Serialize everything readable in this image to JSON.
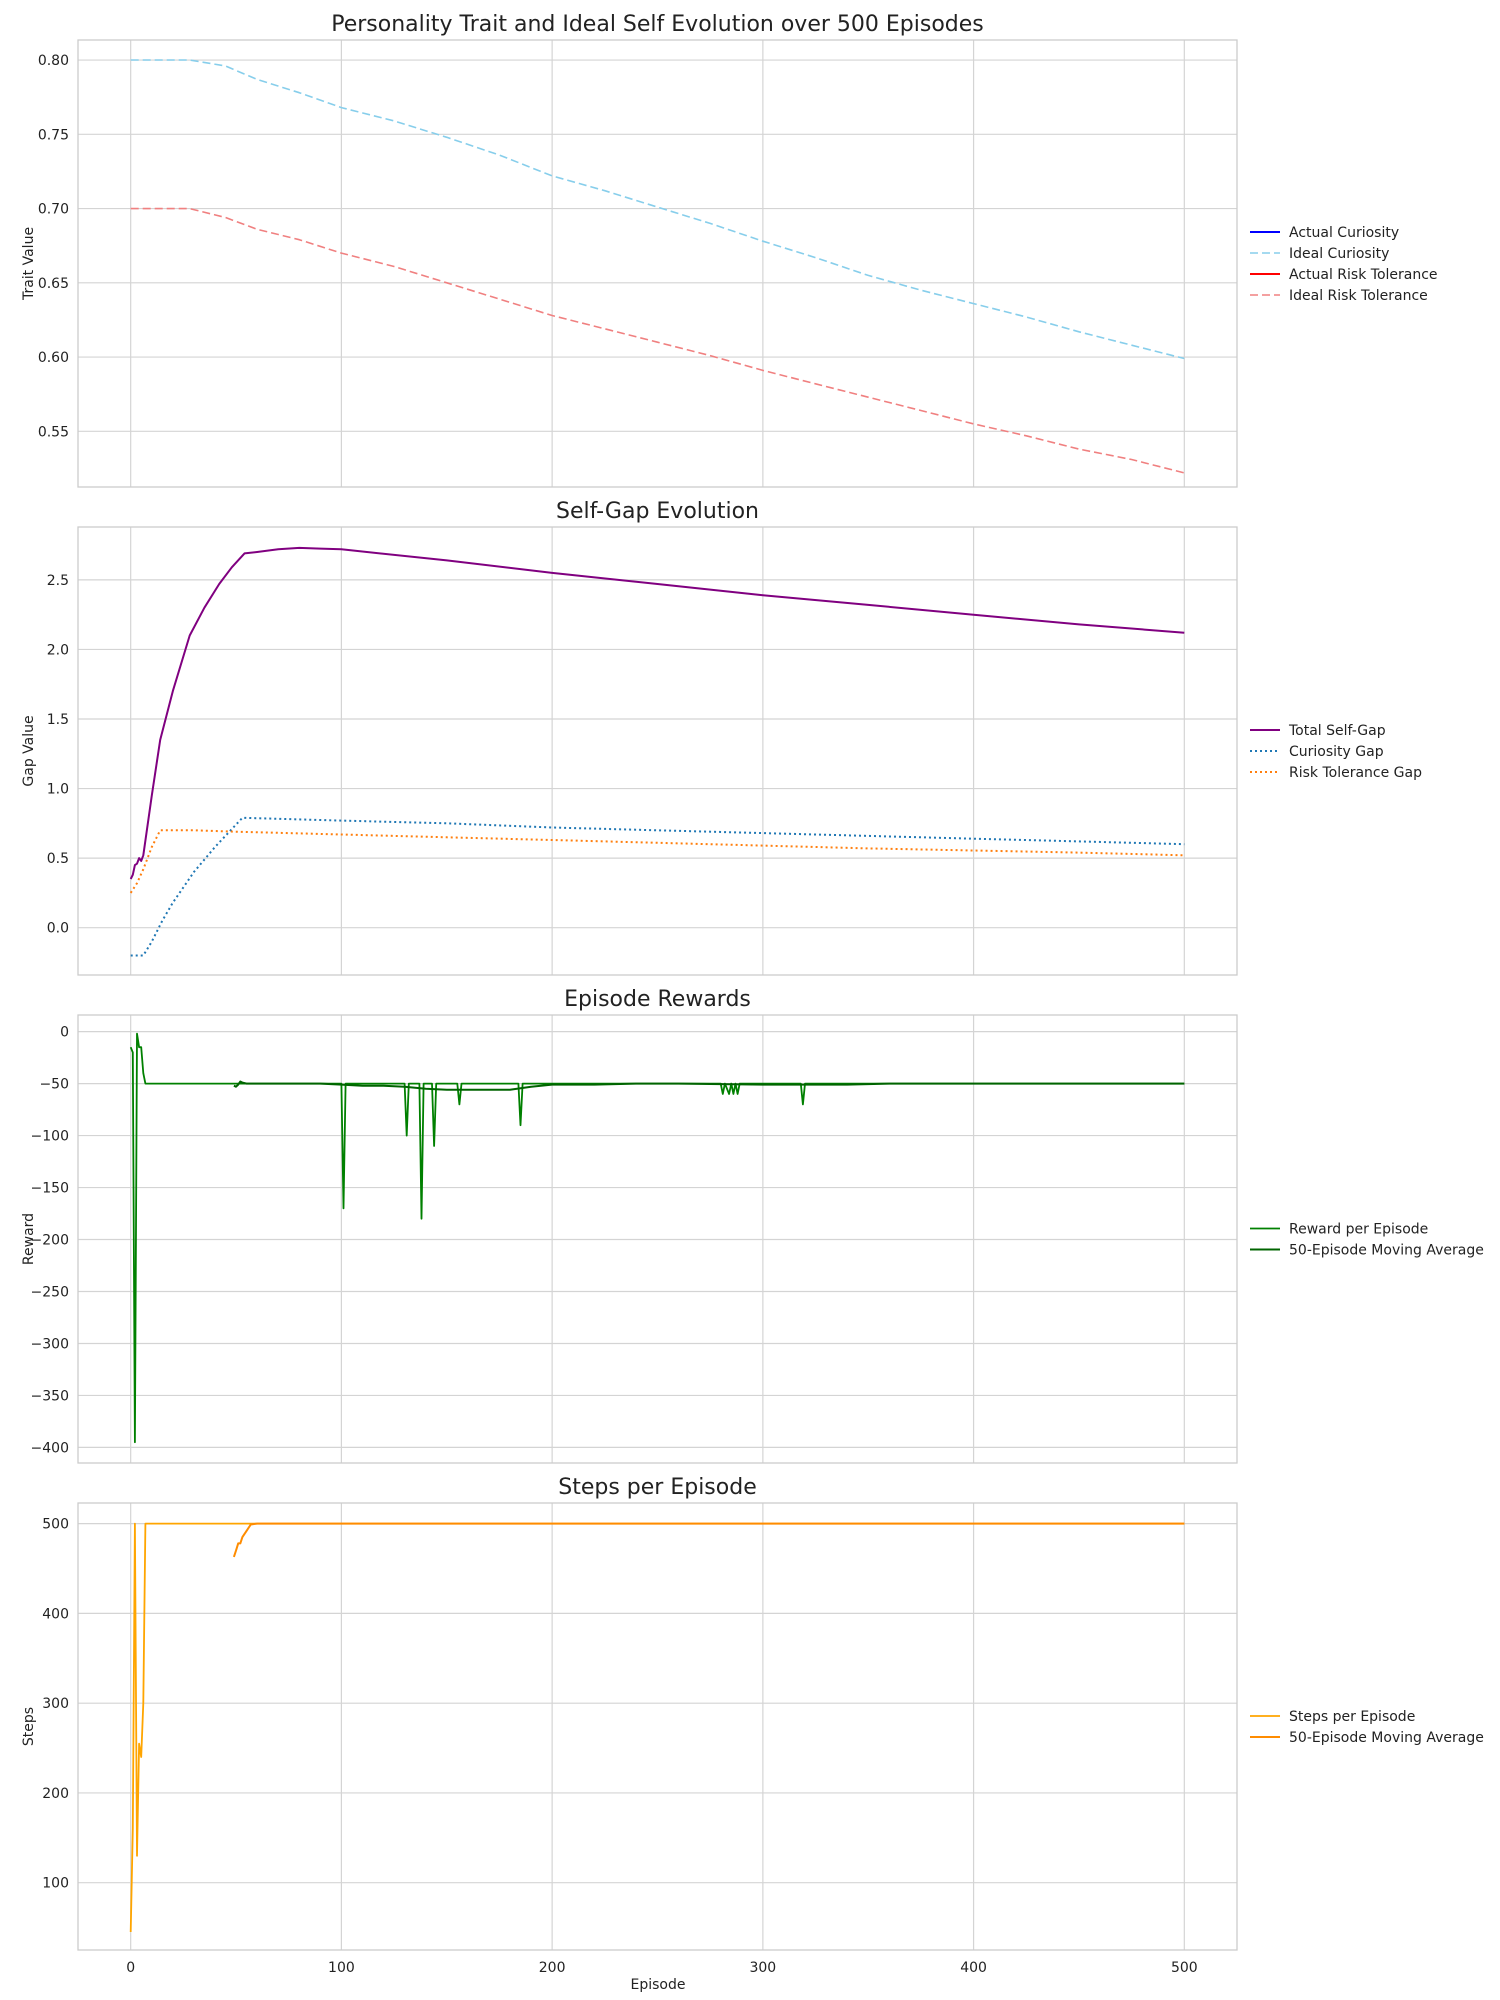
{
  "x_axis_label": "Episode",
  "chart_data": [
    {
      "type": "line",
      "title": "Personality Trait and Ideal Self Evolution over 500 Episodes",
      "xlabel": "",
      "ylabel": "Trait Value",
      "xlim": [
        -25,
        525
      ],
      "ylim": [
        0.5125,
        0.8135
      ],
      "xticks": [
        0,
        100,
        200,
        300,
        400,
        500
      ],
      "xtick_labels": [
        "",
        "",
        "",
        "",
        "",
        ""
      ],
      "yticks": [
        0.55,
        0.6,
        0.65,
        0.7,
        0.75,
        0.8
      ],
      "ytick_labels": [
        "0.55",
        "0.60",
        "0.65",
        "0.70",
        "0.75",
        "0.80"
      ],
      "grid": true,
      "legend_position": "right",
      "series": [
        {
          "name": "Actual Curiosity",
          "color": "#0000ff",
          "style": "solid",
          "width": 2,
          "x": [],
          "y": []
        },
        {
          "name": "Ideal Curiosity",
          "color": "#87ceeb",
          "style": "dashed",
          "width": 1.6,
          "x": [
            0,
            28,
            45,
            60,
            80,
            100,
            125,
            150,
            175,
            200,
            225,
            250,
            275,
            300,
            325,
            350,
            375,
            400,
            425,
            450,
            475,
            500
          ],
          "y": [
            0.8,
            0.8,
            0.796,
            0.787,
            0.778,
            0.768,
            0.759,
            0.748,
            0.736,
            0.722,
            0.712,
            0.701,
            0.69,
            0.678,
            0.667,
            0.655,
            0.645,
            0.636,
            0.627,
            0.617,
            0.608,
            0.599
          ]
        },
        {
          "name": "Actual Risk Tolerance",
          "color": "#ff0000",
          "style": "solid",
          "width": 2,
          "x": [],
          "y": []
        },
        {
          "name": "Ideal Risk Tolerance",
          "color": "#f08080",
          "style": "dashed",
          "width": 1.6,
          "x": [
            0,
            28,
            45,
            60,
            80,
            100,
            125,
            150,
            175,
            200,
            225,
            250,
            275,
            300,
            325,
            350,
            375,
            400,
            425,
            450,
            475,
            500
          ],
          "y": [
            0.7,
            0.7,
            0.694,
            0.686,
            0.679,
            0.67,
            0.661,
            0.65,
            0.639,
            0.628,
            0.619,
            0.61,
            0.601,
            0.591,
            0.582,
            0.573,
            0.564,
            0.555,
            0.547,
            0.538,
            0.531,
            0.522
          ]
        }
      ]
    },
    {
      "type": "line",
      "title": "Self-Gap Evolution",
      "xlabel": "",
      "ylabel": "Gap Value",
      "xlim": [
        -25,
        525
      ],
      "ylim": [
        -0.34,
        2.88
      ],
      "xticks": [
        0,
        100,
        200,
        300,
        400,
        500
      ],
      "xtick_labels": [
        "",
        "",
        "",
        "",
        "",
        ""
      ],
      "yticks": [
        0.0,
        0.5,
        1.0,
        1.5,
        2.0,
        2.5
      ],
      "ytick_labels": [
        "0.0",
        "0.5",
        "1.0",
        "1.5",
        "2.0",
        "2.5"
      ],
      "grid": true,
      "legend_position": "right",
      "series": [
        {
          "name": "Total Self-Gap",
          "color": "#800080",
          "style": "solid",
          "width": 2,
          "x": [
            0,
            1,
            2,
            3,
            4,
            5,
            6,
            10,
            14,
            20,
            28,
            35,
            42,
            48,
            54,
            60,
            70,
            80,
            90,
            100,
            150,
            200,
            250,
            300,
            350,
            400,
            450,
            500
          ],
          "y": [
            0.35,
            0.38,
            0.45,
            0.46,
            0.5,
            0.48,
            0.52,
            0.95,
            1.35,
            1.7,
            2.1,
            2.3,
            2.47,
            2.59,
            2.69,
            2.7,
            2.72,
            2.73,
            2.725,
            2.72,
            2.64,
            2.55,
            2.47,
            2.39,
            2.32,
            2.25,
            2.18,
            2.12
          ]
        },
        {
          "name": "Curiosity Gap",
          "color": "#1f77b4",
          "style": "dotted",
          "width": 2,
          "x": [
            0,
            3,
            6,
            10,
            15,
            20,
            30,
            40,
            53,
            100,
            150,
            200,
            250,
            300,
            350,
            400,
            450,
            500
          ],
          "y": [
            -0.2,
            -0.2,
            -0.2,
            -0.1,
            0.05,
            0.18,
            0.4,
            0.58,
            0.79,
            0.77,
            0.75,
            0.72,
            0.7,
            0.68,
            0.66,
            0.64,
            0.62,
            0.6
          ]
        },
        {
          "name": "Risk Tolerance Gap",
          "color": "#ff7f0e",
          "style": "dotted",
          "width": 2,
          "x": [
            0,
            3,
            6,
            10,
            14,
            20,
            30,
            50,
            100,
            150,
            200,
            250,
            300,
            350,
            400,
            450,
            500
          ],
          "y": [
            0.25,
            0.32,
            0.42,
            0.58,
            0.7,
            0.7,
            0.7,
            0.69,
            0.67,
            0.65,
            0.63,
            0.61,
            0.59,
            0.57,
            0.555,
            0.54,
            0.52
          ]
        }
      ]
    },
    {
      "type": "line",
      "title": "Episode Rewards",
      "xlabel": "",
      "ylabel": "Reward",
      "xlim": [
        -25,
        525
      ],
      "ylim": [
        -415,
        16
      ],
      "xticks": [
        0,
        100,
        200,
        300,
        400,
        500
      ],
      "xtick_labels": [
        "",
        "",
        "",
        "",
        "",
        ""
      ],
      "yticks": [
        0,
        -50,
        -100,
        -150,
        -200,
        -250,
        -300,
        -350,
        -400
      ],
      "ytick_labels": [
        "0",
        "−50",
        "−100",
        "−150",
        "−200",
        "−250",
        "−300",
        "−350",
        "−400"
      ],
      "grid": true,
      "legend_position": "right",
      "series": [
        {
          "name": "Reward per Episode",
          "color": "#008000",
          "style": "solid",
          "width": 1.8,
          "x": [
            0,
            1,
            2,
            3,
            4,
            5,
            6,
            7,
            8,
            100,
            101,
            102,
            130,
            131,
            132,
            137,
            138,
            139,
            143,
            144,
            145,
            155,
            156,
            157,
            184,
            185,
            186,
            280,
            281,
            282,
            284,
            285,
            286,
            287,
            288,
            289,
            318,
            319,
            320,
            500
          ],
          "y": [
            -15,
            -20,
            -395,
            -2,
            -15,
            -15,
            -40,
            -50,
            -50,
            -50,
            -170,
            -50,
            -50,
            -100,
            -50,
            -50,
            -180,
            -50,
            -50,
            -110,
            -50,
            -50,
            -70,
            -50,
            -50,
            -90,
            -50,
            -50,
            -60,
            -50,
            -60,
            -50,
            -60,
            -50,
            -60,
            -50,
            -50,
            -70,
            -50,
            -50
          ]
        },
        {
          "name": "50-Episode Moving Average",
          "color": "#006400",
          "style": "solid",
          "width": 2,
          "x": [
            49,
            50,
            51,
            52,
            53,
            55,
            60,
            70,
            80,
            90,
            100,
            110,
            120,
            130,
            140,
            150,
            160,
            170,
            180,
            190,
            200,
            220,
            240,
            260,
            280,
            300,
            320,
            340,
            360,
            380,
            400,
            450,
            500
          ],
          "y": [
            -52,
            -53,
            -51,
            -48,
            -49,
            -50,
            -50,
            -50,
            -50,
            -50,
            -51,
            -52,
            -52,
            -53,
            -55,
            -56,
            -56,
            -56,
            -56,
            -53,
            -51,
            -51,
            -50,
            -50,
            -50.5,
            -51,
            -51,
            -51,
            -50,
            -50,
            -50,
            -50,
            -50
          ]
        }
      ]
    },
    {
      "type": "line",
      "title": "Steps per Episode",
      "xlabel": "Episode",
      "ylabel": "Steps",
      "xlim": [
        -25,
        525
      ],
      "ylim": [
        25,
        523
      ],
      "xticks": [
        0,
        100,
        200,
        300,
        400,
        500
      ],
      "xtick_labels": [
        "0",
        "100",
        "200",
        "300",
        "400",
        "500"
      ],
      "yticks": [
        100,
        200,
        300,
        400,
        500
      ],
      "ytick_labels": [
        "100",
        "200",
        "300",
        "400",
        "500"
      ],
      "grid": true,
      "legend_position": "right",
      "series": [
        {
          "name": "Steps per Episode",
          "color": "#ffa500",
          "style": "solid",
          "width": 1.8,
          "x": [
            0,
            1,
            2,
            3,
            4,
            5,
            6,
            7,
            8,
            500
          ],
          "y": [
            45,
            160,
            500,
            130,
            255,
            240,
            300,
            500,
            500,
            500
          ]
        },
        {
          "name": "50-Episode Moving Average",
          "color": "#ff8c00",
          "style": "solid",
          "width": 2,
          "x": [
            49,
            50,
            51,
            52,
            53,
            55,
            57,
            60,
            500
          ],
          "y": [
            463,
            470,
            478,
            478,
            485,
            492,
            499,
            500,
            500
          ]
        }
      ]
    }
  ]
}
